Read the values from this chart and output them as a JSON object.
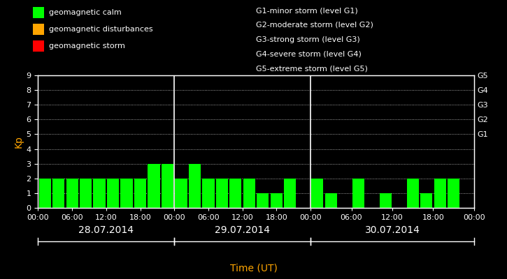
{
  "background_color": "#000000",
  "plot_bg_color": "#000000",
  "bar_color_calm": "#00ff00",
  "bar_color_disturb": "#ffa500",
  "bar_color_storm": "#ff0000",
  "grid_color": "#ffffff",
  "text_color": "#ffffff",
  "xlabel_color": "#ffa500",
  "ylabel_color": "#ffa500",
  "xlabel": "Time (UT)",
  "ylabel": "Kp",
  "ylim": [
    0,
    9
  ],
  "yticks": [
    0,
    1,
    2,
    3,
    4,
    5,
    6,
    7,
    8,
    9
  ],
  "right_labels": [
    {
      "y": 5,
      "label": "G1"
    },
    {
      "y": 6,
      "label": "G2"
    },
    {
      "y": 7,
      "label": "G3"
    },
    {
      "y": 8,
      "label": "G4"
    },
    {
      "y": 9,
      "label": "G5"
    }
  ],
  "legend_items": [
    {
      "color": "#00ff00",
      "label": "geomagnetic calm"
    },
    {
      "color": "#ffa500",
      "label": "geomagnetic disturbances"
    },
    {
      "color": "#ff0000",
      "label": "geomagnetic storm"
    }
  ],
  "legend2_lines": [
    "G1-minor storm (level G1)",
    "G2-moderate storm (level G2)",
    "G3-strong storm (level G3)",
    "G4-severe storm (level G4)",
    "G5-extreme storm (level G5)"
  ],
  "day_labels": [
    "28.07.2014",
    "29.07.2014",
    "30.07.2014"
  ],
  "kp_values": [
    2,
    2,
    2,
    2,
    2,
    2,
    2,
    2,
    3,
    3,
    2,
    3,
    2,
    2,
    2,
    2,
    1,
    1,
    2,
    0,
    2,
    1,
    0,
    2,
    0,
    1,
    0,
    2,
    1,
    2,
    2,
    0
  ],
  "n_bars_per_day": [
    10,
    10,
    12
  ],
  "font_family": "monospace",
  "font_size_ticks": 8,
  "font_size_legend": 8,
  "font_size_ylabel": 10,
  "font_size_xlabel": 10,
  "font_size_day": 10,
  "font_size_right": 8
}
